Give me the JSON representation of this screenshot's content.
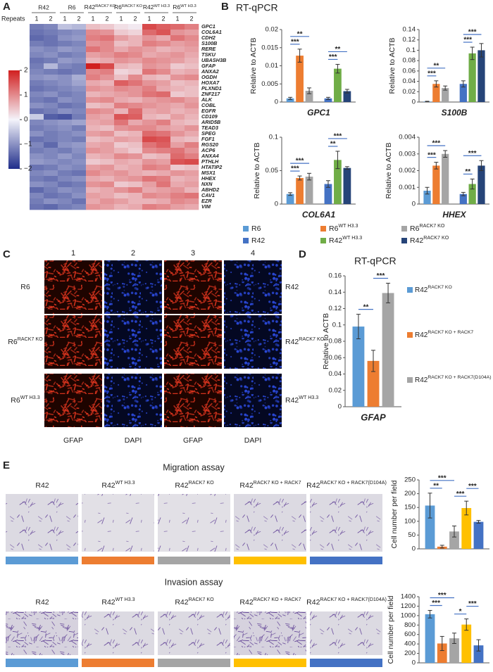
{
  "panel_labels": [
    "A",
    "B",
    "C",
    "D",
    "E"
  ],
  "heatmap": {
    "groups": [
      "R42",
      "R6",
      {
        "base": "R42",
        "sup": "RACK7 KO"
      },
      {
        "base": "R6",
        "sup": "RACK7 KO"
      },
      {
        "base": "R42",
        "sup": "WT H3.3"
      },
      {
        "base": "R6",
        "sup": "WT H3.3"
      }
    ],
    "repeats_label": "Repeats",
    "repeats": [
      1,
      2
    ],
    "genes": [
      "GPC1",
      "COL6A1",
      "CDH2",
      "S100B",
      "RERE",
      "TSKU",
      "UBASH3B",
      "GFAP",
      "ANXA2",
      "OGDH",
      "HOXA7",
      "PLXND1",
      "ZNF217",
      "ALK",
      "COBL",
      "EGFR",
      "CD109",
      "ARID5B",
      "TEAD3",
      "SPEG",
      "FGF1",
      "RGS20",
      "ACP6",
      "ANXA4",
      "PTHLH",
      "HTATIP2",
      "MSX1",
      "HHEX",
      "NXN",
      "ABHD2",
      "CAV1",
      "EZR",
      "VIM"
    ],
    "values": [
      [
        -1.2,
        -1.1,
        -0.5,
        -0.6,
        0.5,
        0.4,
        0.2,
        0.1,
        1.6,
        1.4,
        1.3,
        1.1
      ],
      [
        -1.3,
        -1.2,
        -1.1,
        -1.0,
        1.0,
        0.9,
        0.4,
        0.3,
        1.3,
        1.5,
        0.9,
        0.8
      ],
      [
        -1.4,
        -1.3,
        -1.0,
        -0.9,
        1.1,
        1.2,
        0.8,
        0.6,
        0.9,
        0.7,
        1.2,
        1.0
      ],
      [
        -1.2,
        -1.3,
        -1.2,
        -1.1,
        0.9,
        1.0,
        0.5,
        0.6,
        1.1,
        1.0,
        0.8,
        0.9
      ],
      [
        -1.0,
        -1.1,
        -0.9,
        -1.0,
        1.2,
        1.0,
        0.7,
        0.9,
        0.8,
        0.6,
        0.7,
        0.8
      ],
      [
        -1.1,
        -1.0,
        -1.2,
        -1.1,
        0.8,
        0.9,
        1.1,
        1.0,
        0.7,
        0.8,
        0.9,
        0.7
      ],
      [
        -1.3,
        -1.2,
        -0.9,
        -1.0,
        0.6,
        0.7,
        0.9,
        0.8,
        1.0,
        0.9,
        0.8,
        0.6
      ],
      [
        -1.2,
        -0.6,
        -1.1,
        -1.2,
        2.0,
        1.6,
        0.6,
        0.5,
        0.9,
        0.8,
        0.4,
        0.5
      ],
      [
        -1.1,
        -1.2,
        -1.3,
        -1.2,
        1.0,
        1.1,
        0.3,
        0.4,
        1.2,
        1.0,
        0.6,
        0.7
      ],
      [
        -1.0,
        -0.9,
        -1.0,
        -0.7,
        1.1,
        0.9,
        0.5,
        1.0,
        0.6,
        0.5,
        0.9,
        1.0
      ],
      [
        -1.2,
        -1.1,
        -1.0,
        -0.8,
        0.7,
        0.6,
        1.4,
        1.2,
        0.9,
        0.8,
        0.5,
        0.6
      ],
      [
        -1.3,
        -1.2,
        -1.1,
        -1.0,
        0.9,
        0.8,
        1.0,
        0.9,
        1.1,
        0.7,
        0.6,
        0.5
      ],
      [
        -1.1,
        -1.0,
        -1.2,
        -1.1,
        0.6,
        0.7,
        0.8,
        0.9,
        1.2,
        1.3,
        0.4,
        0.5
      ],
      [
        -1.2,
        -1.3,
        -1.0,
        -1.1,
        0.9,
        1.0,
        0.7,
        0.6,
        0.8,
        0.9,
        1.0,
        0.8
      ],
      [
        -1.0,
        -1.1,
        -1.3,
        -1.2,
        0.5,
        0.6,
        1.1,
        1.0,
        0.9,
        0.8,
        0.7,
        0.9
      ],
      [
        -1.3,
        -1.2,
        -1.0,
        -1.1,
        1.0,
        0.9,
        0.6,
        1.3,
        0.7,
        0.8,
        0.6,
        0.7
      ],
      [
        -0.4,
        -1.5,
        -1.6,
        -1.2,
        0.8,
        0.7,
        1.5,
        1.4,
        0.6,
        0.5,
        0.8,
        0.6
      ],
      [
        -1.1,
        -1.0,
        -0.9,
        -0.8,
        0.7,
        0.8,
        1.2,
        0.7,
        0.9,
        1.1,
        0.6,
        0.5
      ],
      [
        -1.2,
        -1.1,
        -1.0,
        -1.2,
        0.6,
        0.5,
        0.9,
        1.0,
        1.0,
        0.8,
        0.7,
        0.9
      ],
      [
        -1.0,
        -1.2,
        -1.1,
        -1.0,
        0.8,
        0.9,
        0.5,
        0.6,
        1.3,
        1.2,
        0.9,
        0.7
      ],
      [
        -1.3,
        -1.2,
        -1.1,
        -1.2,
        0.5,
        0.6,
        0.8,
        0.7,
        1.6,
        1.5,
        0.6,
        0.5
      ],
      [
        -1.1,
        -1.4,
        -1.0,
        -0.9,
        0.7,
        0.8,
        0.4,
        0.5,
        1.2,
        1.4,
        0.8,
        1.1
      ],
      [
        -1.2,
        -1.1,
        -1.2,
        -1.0,
        0.9,
        0.8,
        0.6,
        0.4,
        1.0,
        1.1,
        1.2,
        0.9
      ],
      [
        -1.0,
        -1.1,
        -0.9,
        -1.1,
        0.6,
        0.7,
        1.0,
        0.9,
        0.5,
        0.6,
        1.3,
        1.1
      ],
      [
        -0.9,
        -1.0,
        -1.1,
        -1.0,
        0.4,
        0.5,
        0.7,
        0.6,
        0.9,
        0.8,
        1.5,
        1.6
      ],
      [
        -1.3,
        -1.2,
        -1.0,
        -1.1,
        0.8,
        0.9,
        0.6,
        0.7,
        1.1,
        1.0,
        0.4,
        0.5
      ],
      [
        -1.1,
        -1.0,
        -1.2,
        -1.3,
        1.0,
        0.8,
        0.9,
        0.7,
        0.6,
        0.7,
        0.9,
        0.8
      ],
      [
        -1.2,
        -1.3,
        -1.1,
        -1.0,
        0.7,
        0.6,
        0.8,
        0.9,
        1.2,
        1.1,
        0.6,
        0.7
      ],
      [
        -1.0,
        -1.1,
        -1.3,
        -1.2,
        0.9,
        1.0,
        0.4,
        0.5,
        0.8,
        1.2,
        0.7,
        0.8
      ],
      [
        -1.4,
        -1.2,
        -1.0,
        -1.1,
        0.6,
        0.7,
        0.9,
        1.1,
        0.7,
        0.8,
        0.9,
        0.6
      ],
      [
        -1.1,
        -1.3,
        -1.2,
        -1.0,
        0.8,
        0.7,
        0.5,
        0.6,
        1.0,
        0.9,
        1.1,
        1.2
      ],
      [
        -1.2,
        -1.0,
        -1.1,
        -1.3,
        0.7,
        0.9,
        0.8,
        0.6,
        0.6,
        0.7,
        1.0,
        0.9
      ],
      [
        -1.3,
        -1.4,
        -1.2,
        -1.1,
        0.9,
        0.8,
        0.6,
        0.7,
        1.1,
        1.0,
        0.8,
        0.7
      ]
    ],
    "colorbar": {
      "lim": [
        -2,
        2
      ],
      "ticks": [
        2,
        1,
        0,
        {
          "value": -1,
          "label": "−1"
        },
        {
          "value": -2,
          "label": "−2"
        }
      ]
    }
  },
  "panel_b": {
    "title": "RT-qPCR",
    "legend": [
      {
        "label": "R6",
        "color": "#5b9bd5"
      },
      {
        "label": {
          "base": "R6",
          "sup": "WT H3.3"
        },
        "color": "#ed7d31"
      },
      {
        "label": {
          "base": "R6",
          "sup": "RACK7 KO"
        },
        "color": "#a5a5a5"
      },
      {
        "label": "R42",
        "color": "#4472c4"
      },
      {
        "label": {
          "base": "R42",
          "sup": "WT H3.3"
        },
        "color": "#70ad47"
      },
      {
        "label": {
          "base": "R42",
          "sup": "RACK7 KO"
        },
        "color": "#264478"
      }
    ]
  },
  "chart_data": [
    {
      "type": "bar",
      "xlabel": "GPC1",
      "ylabel": "Relative to ACTB",
      "ylim": [
        0,
        0.02
      ],
      "yticks": [
        0,
        0.005,
        0.01,
        0.015,
        0.02
      ],
      "values": [
        0.001,
        0.0128,
        0.0031,
        0.001,
        0.0092,
        0.003
      ],
      "errors": [
        0.0003,
        0.0018,
        0.0008,
        0.0003,
        0.0012,
        0.0005
      ],
      "colors": [
        "#5b9bd5",
        "#ed7d31",
        "#a5a5a5",
        "#4472c4",
        "#70ad47",
        "#264478"
      ],
      "brackets": [
        {
          "between": [
            0,
            1
          ],
          "label": "***"
        },
        {
          "between": [
            0,
            2
          ],
          "label": "**"
        },
        {
          "between": [
            3,
            4
          ],
          "label": "***"
        },
        {
          "between": [
            3,
            5
          ],
          "label": "**"
        }
      ]
    },
    {
      "type": "bar",
      "xlabel": "S100B",
      "ylabel": "Relative to ACTB",
      "ylim": [
        0,
        0.14
      ],
      "yticks": [
        0,
        0.02,
        0.04,
        0.06,
        0.08,
        0.1,
        0.12,
        0.14
      ],
      "values": [
        0.001,
        0.035,
        0.027,
        0.035,
        0.094,
        0.1
      ],
      "errors": [
        0.0005,
        0.006,
        0.004,
        0.006,
        0.012,
        0.013
      ],
      "colors": [
        "#5b9bd5",
        "#ed7d31",
        "#a5a5a5",
        "#4472c4",
        "#70ad47",
        "#264478"
      ],
      "brackets": [
        {
          "between": [
            0,
            1
          ],
          "label": "***"
        },
        {
          "between": [
            0,
            2
          ],
          "label": "**"
        },
        {
          "between": [
            3,
            4
          ],
          "label": "***"
        },
        {
          "between": [
            3,
            5
          ],
          "label": "***"
        }
      ]
    },
    {
      "type": "bar",
      "xlabel": "COL6A1",
      "ylabel": "Relative to ACTB",
      "ylim": [
        0,
        0.1
      ],
      "yticks": [
        0,
        0.05,
        0.1
      ],
      "values": [
        0.015,
        0.039,
        0.041,
        0.03,
        0.066,
        0.054
      ],
      "errors": [
        0.002,
        0.003,
        0.005,
        0.005,
        0.013,
        0.002
      ],
      "colors": [
        "#5b9bd5",
        "#ed7d31",
        "#a5a5a5",
        "#4472c4",
        "#70ad47",
        "#264478"
      ],
      "brackets": [
        {
          "between": [
            0,
            1
          ],
          "label": "***"
        },
        {
          "between": [
            0,
            2
          ],
          "label": "***"
        },
        {
          "between": [
            3,
            4
          ],
          "label": "**"
        },
        {
          "between": [
            3,
            5
          ],
          "label": "***"
        }
      ]
    },
    {
      "type": "bar",
      "xlabel": "HHEX",
      "ylabel": "Relative to ACTB",
      "ylim": [
        0,
        0.004
      ],
      "yticks": [
        0,
        0.001,
        0.002,
        0.003,
        0.004
      ],
      "values": [
        0.0008,
        0.0023,
        0.003,
        0.0006,
        0.0012,
        0.0023
      ],
      "errors": [
        0.0002,
        0.0002,
        0.0002,
        0.0001,
        0.0003,
        0.0003
      ],
      "colors": [
        "#5b9bd5",
        "#ed7d31",
        "#a5a5a5",
        "#4472c4",
        "#70ad47",
        "#264478"
      ],
      "brackets": [
        {
          "between": [
            0,
            1
          ],
          "label": "***"
        },
        {
          "between": [
            0,
            2
          ],
          "label": "***"
        },
        {
          "between": [
            3,
            4
          ],
          "label": "**"
        },
        {
          "between": [
            3,
            5
          ],
          "label": "***"
        }
      ]
    },
    {
      "type": "bar",
      "xlabel": "GFAP",
      "ylabel": "Relative to ACTB",
      "ylim": [
        0,
        0.16
      ],
      "yticks": [
        0,
        0.02,
        0.04,
        0.06,
        0.08,
        0.1,
        0.12,
        0.14,
        0.16
      ],
      "values": [
        0.098,
        0.056,
        0.139
      ],
      "errors": [
        0.015,
        0.013,
        0.012
      ],
      "colors": [
        "#5b9bd5",
        "#ed7d31",
        "#a5a5a5"
      ],
      "legend": [
        {
          "base": "R42",
          "sup": "RACK7 KO"
        },
        {
          "base": "R42",
          "sup": "RACK7 KO + RACK7"
        },
        {
          "base": "R42",
          "sup": "RACK7 KO + RACK7(D104A)"
        }
      ],
      "brackets": [
        {
          "between": [
            0,
            1
          ],
          "label": "**"
        },
        {
          "between": [
            1,
            2
          ],
          "label": "***"
        }
      ]
    },
    {
      "type": "bar",
      "ylabel": "Cell number per field",
      "ylim": [
        0,
        250
      ],
      "yticks": [
        0,
        50,
        100,
        150,
        200,
        250
      ],
      "values": [
        157,
        8,
        63,
        148,
        98
      ],
      "errors": [
        45,
        5,
        20,
        25,
        5
      ],
      "colors": [
        "#5b9bd5",
        "#ed7d31",
        "#a5a5a5",
        "#ffc000",
        "#4472c4"
      ],
      "brackets": [
        {
          "between": [
            0,
            1
          ],
          "label": "**"
        },
        {
          "between": [
            2,
            3
          ],
          "label": "***"
        },
        {
          "between": [
            0,
            2
          ],
          "label": "***"
        },
        {
          "between": [
            3,
            4
          ],
          "label": "***"
        }
      ]
    },
    {
      "type": "bar",
      "ylabel": "Cell number per field",
      "ylim": [
        0,
        1400
      ],
      "yticks": [
        0,
        200,
        400,
        600,
        800,
        1000,
        1200,
        1400
      ],
      "values": [
        1030,
        410,
        520,
        810,
        370
      ],
      "errors": [
        80,
        150,
        110,
        120,
        120
      ],
      "colors": [
        "#5b9bd5",
        "#ed7d31",
        "#a5a5a5",
        "#ffc000",
        "#4472c4"
      ],
      "brackets": [
        {
          "between": [
            0,
            1
          ],
          "label": "***"
        },
        {
          "between": [
            2,
            3
          ],
          "label": "*"
        },
        {
          "between": [
            0,
            2
          ],
          "label": "***"
        },
        {
          "between": [
            3,
            4
          ],
          "label": "***"
        }
      ]
    }
  ],
  "panel_c": {
    "columns": [
      1,
      2,
      3,
      4
    ],
    "rows_left": [
      "R6",
      {
        "base": "R6",
        "sup": "RACK7 KO"
      },
      {
        "base": "R6",
        "sup": "WT H3.3"
      }
    ],
    "rows_right": [
      "R42",
      {
        "base": "R42",
        "sup": "RACK7 KO"
      },
      {
        "base": "R42",
        "sup": "WT H3.3"
      }
    ],
    "stains": [
      "GFAP",
      "DAPI",
      "GFAP",
      "DAPI"
    ]
  },
  "panel_d": {
    "title": "RT-qPCR"
  },
  "panel_e": {
    "columns": [
      "R42",
      {
        "base": "R42",
        "sup": "WT H3.3"
      },
      {
        "base": "R42",
        "sup": "RACK7 KO"
      },
      {
        "base": "R42",
        "sup": "RACK7 KO + RACK7"
      },
      {
        "base": "R42",
        "sup": "RACK7 KO + RACK7(D104A)"
      }
    ],
    "assays": [
      {
        "title": "Migration assay"
      },
      {
        "title": "Invasion assay"
      }
    ]
  }
}
